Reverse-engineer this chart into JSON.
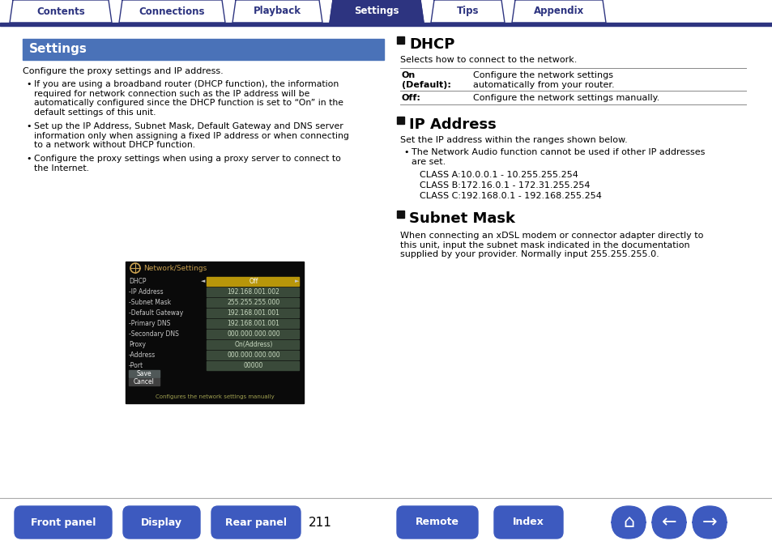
{
  "page_bg": "#ffffff",
  "top_bar_color": "#2d3480",
  "tab_items": [
    "Contents",
    "Connections",
    "Playback",
    "Settings",
    "Tips",
    "Appendix"
  ],
  "active_tab": "Settings",
  "active_tab_bg": "#2d3480",
  "active_tab_fg": "#ffffff",
  "inactive_tab_fg": "#2d3480",
  "section_header_bg": "#4a72b8",
  "section_header_text": "Settings",
  "section_header_fg": "#ffffff",
  "body_text_color": "#000000",
  "intro_text": "Configure the proxy settings and IP address.",
  "bullet_points": [
    "If you are using a broadband router (DHCP function), the information\nrequired for network connection such as the IP address will be\nautomatically configured since the DHCP function is set to “On” in the\ndefault settings of this unit.",
    "Set up the IP Address, Subnet Mask, Default Gateway and DNS server\ninformation only when assigning a fixed IP address or when connecting\nto a network without DHCP function.",
    "Configure the proxy settings when using a proxy server to connect to\nthe Internet."
  ],
  "right_section_title1": "DHCP",
  "right_section_text1": "Selects how to connect to the network.",
  "dhcp_table": [
    [
      "On\n(Default):",
      "Configure the network settings\nautomatically from your router."
    ],
    [
      "Off:",
      "Configure the network settings manually."
    ]
  ],
  "right_section_title2": "IP Address",
  "right_section_text2": "Set the IP address within the ranges shown below.",
  "ip_bullet": "The Network Audio function cannot be used if other IP addresses\nare set.",
  "ip_classes": [
    "CLASS A:10.0.0.1 - 10.255.255.254",
    "CLASS B:172.16.0.1 - 172.31.255.254",
    "CLASS C:192.168.0.1 - 192.168.255.254"
  ],
  "right_section_title3": "Subnet Mask",
  "right_section_text3": "When connecting an xDSL modem or connector adapter directly to\nthis unit, input the subnet mask indicated in the documentation\nsupplied by your provider. Normally input 255.255.255.0.",
  "bottom_buttons": [
    "Front panel",
    "Display",
    "Rear panel",
    "Remote",
    "Index"
  ],
  "page_number": "211",
  "button_bg": "#3d5abf",
  "button_fg": "#ffffff",
  "screen_bg": "#111111",
  "screen_title": "Network/Settings",
  "screen_rows": [
    [
      "DHCP",
      "Off",
      true
    ],
    [
      "-IP Address",
      "192.168.001.002",
      false
    ],
    [
      "-Subnet Mask",
      "255.255.255.000",
      false
    ],
    [
      "-Default Gateway",
      "192.168.001.001",
      false
    ],
    [
      "-Primary DNS",
      "192.168.001.001",
      false
    ],
    [
      "-Secondary DNS",
      "000.000.000.000",
      false
    ],
    [
      "Proxy",
      "On(Address)",
      false
    ],
    [
      "-Address",
      "000.000.000.000",
      false
    ],
    [
      "-Port",
      "00000",
      false
    ]
  ],
  "screen_save_cancel": [
    "Save",
    "Cancel"
  ],
  "screen_footer": "Configures the network settings manually"
}
